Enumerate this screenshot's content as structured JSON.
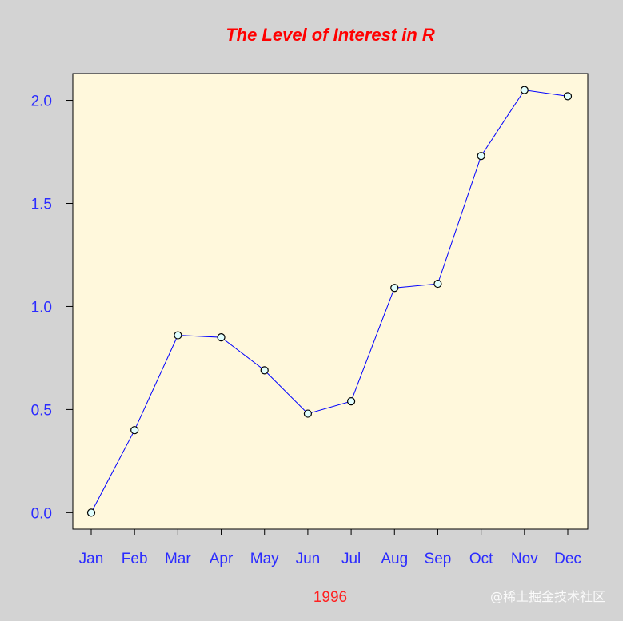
{
  "chart_data": {
    "type": "line",
    "title": "The Level of Interest in R",
    "xlabel": "1996",
    "ylabel": "",
    "categories": [
      "Jan",
      "Feb",
      "Mar",
      "Apr",
      "May",
      "Jun",
      "Jul",
      "Aug",
      "Sep",
      "Oct",
      "Nov",
      "Dec"
    ],
    "values": [
      0.0,
      0.4,
      0.86,
      0.85,
      0.69,
      0.48,
      0.54,
      1.09,
      1.11,
      1.73,
      2.05,
      2.02
    ],
    "ylim": [
      -0.08,
      2.13
    ],
    "yticks": [
      "0.0",
      "0.5",
      "1.0",
      "1.5",
      "2.0"
    ],
    "grid": false,
    "legend": "none",
    "colors": {
      "background": "#d3d3d3",
      "plot_background": "#fff8dc",
      "line": "#0000ff",
      "marker_fill": "#e0ffff",
      "title": "#ff0000",
      "tick_labels": "#2b2bff",
      "xlabel": "#ff2020"
    }
  },
  "watermark": "@稀土掘金技术社区"
}
